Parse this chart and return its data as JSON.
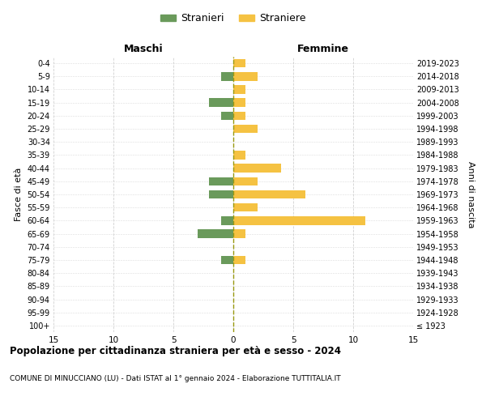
{
  "age_groups": [
    "100+",
    "95-99",
    "90-94",
    "85-89",
    "80-84",
    "75-79",
    "70-74",
    "65-69",
    "60-64",
    "55-59",
    "50-54",
    "45-49",
    "40-44",
    "35-39",
    "30-34",
    "25-29",
    "20-24",
    "15-19",
    "10-14",
    "5-9",
    "0-4"
  ],
  "birth_years": [
    "≤ 1923",
    "1924-1928",
    "1929-1933",
    "1934-1938",
    "1939-1943",
    "1944-1948",
    "1949-1953",
    "1954-1958",
    "1959-1963",
    "1964-1968",
    "1969-1973",
    "1974-1978",
    "1979-1983",
    "1984-1988",
    "1989-1993",
    "1994-1998",
    "1999-2003",
    "2004-2008",
    "2009-2013",
    "2014-2018",
    "2019-2023"
  ],
  "maschi": [
    0,
    0,
    0,
    0,
    0,
    1,
    0,
    3,
    1,
    0,
    2,
    2,
    0,
    0,
    0,
    0,
    1,
    2,
    0,
    1,
    0
  ],
  "femmine": [
    0,
    0,
    0,
    0,
    0,
    1,
    0,
    1,
    11,
    2,
    6,
    2,
    4,
    1,
    0,
    2,
    1,
    1,
    1,
    2,
    1
  ],
  "color_maschi": "#6a9a5b",
  "color_femmine": "#f5c242",
  "title_main": "Popolazione per cittadinanza straniera per età e sesso - 2024",
  "title_sub": "COMUNE DI MINUCCIANO (LU) - Dati ISTAT al 1° gennaio 2024 - Elaborazione TUTTITALIA.IT",
  "legend_maschi": "Stranieri",
  "legend_femmine": "Straniere",
  "xlabel_left": "Maschi",
  "xlabel_right": "Femmine",
  "ylabel_left": "Fasce di età",
  "ylabel_right": "Anni di nascita",
  "xlim": 15,
  "background_color": "#ffffff",
  "grid_color": "#cccccc",
  "dashed_line_color": "#999910"
}
